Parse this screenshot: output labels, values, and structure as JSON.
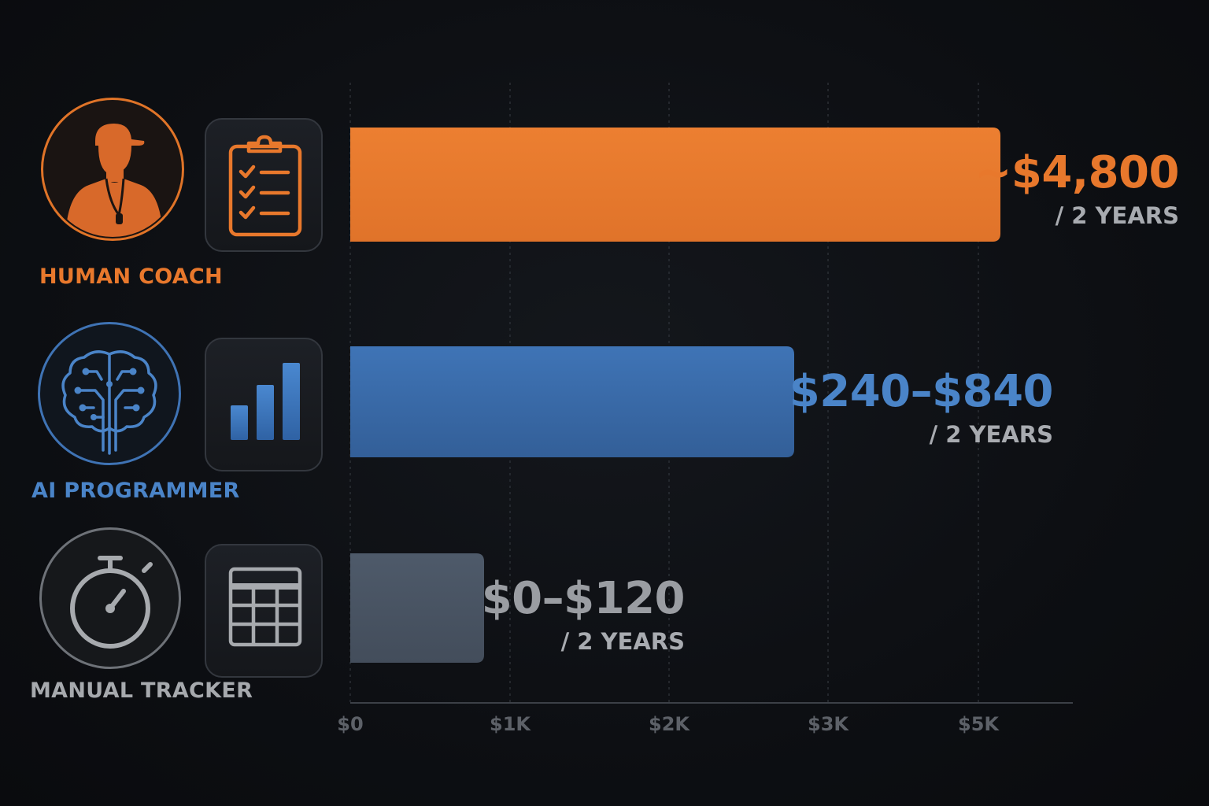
{
  "chart_data": {
    "type": "bar",
    "orientation": "horizontal",
    "categories": [
      "HUMAN COACH",
      "AI PROGRAMMER",
      "MANUAL TRACKER"
    ],
    "values": [
      4800,
      840,
      120
    ],
    "ranges": [
      [
        4800,
        4800
      ],
      [
        240,
        840
      ],
      [
        0,
        120
      ]
    ],
    "value_labels": [
      {
        "main": "~$4,800",
        "sub": "/ 2 YEARS"
      },
      {
        "main": "$240–$840",
        "sub": "/ 2 YEARS"
      },
      {
        "main": "$0–$120",
        "sub": "/ 2 YEARS"
      }
    ],
    "x_ticks": [
      "$0",
      "$1K",
      "$2K",
      "$3K",
      "$5K"
    ],
    "grid": true,
    "colors": {
      "human_coach": "#e87a2c",
      "ai_programmer": "#3c6fb0",
      "manual_tracker": "#4a5564"
    }
  },
  "tiers": [
    {
      "label": "HUMAN COACH",
      "label_color": "#e8782c",
      "avatar_icon": "coach-icon",
      "tile_icon": "clipboard-checklist-icon"
    },
    {
      "label": "AI PROGRAMMER",
      "label_color": "#4a84c8",
      "avatar_icon": "brain-circuit-icon",
      "tile_icon": "bar-chart-icon"
    },
    {
      "label": "MANUAL TRACKER",
      "label_color": "#a6a9ad",
      "avatar_icon": "stopwatch-icon",
      "tile_icon": "spreadsheet-icon"
    }
  ]
}
